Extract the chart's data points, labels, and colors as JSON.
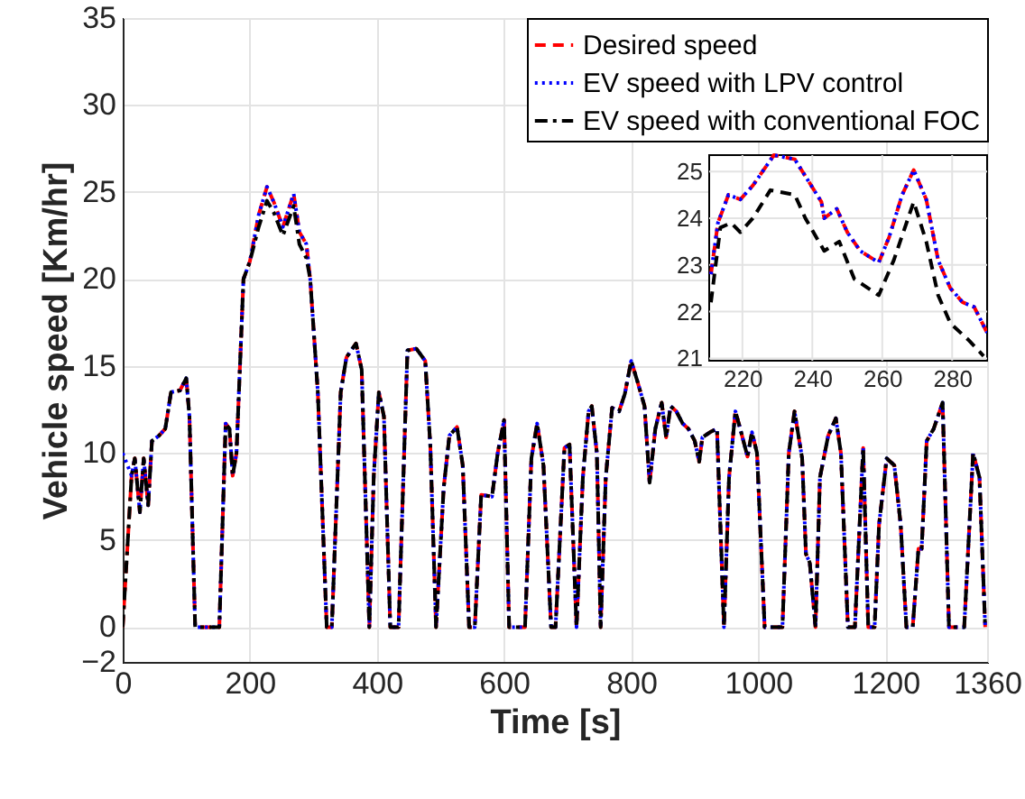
{
  "chart_data": [
    {
      "type": "line",
      "xlabel": "Time [s]",
      "ylabel": "Vehicle speed [Km/hr]",
      "xlim": [
        0,
        1360
      ],
      "ylim": [
        -2,
        35
      ],
      "xticks": [
        0,
        200,
        400,
        600,
        800,
        1000,
        1200,
        1360
      ],
      "yticks": [
        -2,
        0,
        5,
        10,
        15,
        20,
        25,
        30,
        35
      ],
      "grid": true,
      "legend": "top right",
      "x": [
        0,
        14,
        19,
        27,
        33,
        40,
        46,
        57,
        67,
        76,
        90,
        100,
        105,
        114,
        152,
        162,
        168,
        173,
        179,
        190,
        200,
        214,
        227,
        238,
        252,
        269,
        278,
        289,
        295,
        307,
        321,
        329,
        343,
        352,
        367,
        376,
        388,
        395,
        403,
        411,
        421,
        434,
        448,
        462,
        476,
        484,
        493,
        505,
        514,
        526,
        535,
        545,
        554,
        564,
        581,
        590,
        600,
        608,
        633,
        643,
        652,
        662,
        674,
        681,
        695,
        703,
        714,
        724,
        733,
        738,
        746,
        752,
        760,
        770,
        781,
        790,
        800,
        810,
        821,
        829,
        838,
        848,
        855,
        862,
        871,
        881,
        890,
        900,
        907,
        912,
        924,
        935,
        946,
        954,
        964,
        973,
        983,
        990,
        998,
        1010,
        1038,
        1048,
        1057,
        1069,
        1075,
        1081,
        1090,
        1097,
        1110,
        1122,
        1130,
        1141,
        1152,
        1165,
        1173,
        1183,
        1190,
        1202,
        1214,
        1224,
        1233,
        1243,
        1252,
        1257,
        1265,
        1276,
        1290,
        1300,
        1324,
        1338,
        1348,
        1357
      ],
      "series": [
        {
          "name": "Desired speed",
          "color": "#ff0000",
          "line_style": "dashed",
          "values": [
            0,
            8.7,
            9.7,
            6.6,
            9.7,
            7,
            10.7,
            11,
            11.4,
            13.5,
            13.6,
            14.3,
            12.1,
            0,
            0,
            11.7,
            11.4,
            8.7,
            10,
            20,
            21,
            23.7,
            25.3,
            24.4,
            23,
            24.9,
            22.7,
            22,
            20,
            13.5,
            0,
            0,
            13.5,
            15.5,
            16.3,
            14.8,
            0,
            8.7,
            13.5,
            12.1,
            0,
            0,
            15.9,
            16,
            15.3,
            10.4,
            0,
            8,
            11,
            11.5,
            9.3,
            0,
            0,
            7.6,
            7.5,
            10,
            11.9,
            0,
            0,
            9.7,
            11.7,
            9.3,
            0,
            0,
            10.3,
            10.5,
            0,
            8.6,
            12.4,
            12.7,
            10,
            0,
            8.6,
            12.6,
            12.4,
            13.4,
            15.3,
            14.1,
            12.7,
            8.3,
            11.4,
            12.9,
            10.9,
            12.7,
            12.4,
            11.7,
            11.4,
            10.7,
            9.5,
            10.9,
            11.2,
            11.4,
            0,
            8.6,
            12.4,
            11.2,
            9.8,
            11.2,
            10,
            0,
            0,
            10,
            12.4,
            9.7,
            4.2,
            3.7,
            0,
            8.6,
            11,
            12,
            10,
            0,
            0,
            10.3,
            0,
            0,
            5.9,
            9.7,
            9.3,
            5.9,
            0,
            0,
            4.5,
            4.5,
            10.7,
            11.4,
            12.9,
            0,
            0,
            10,
            8.6,
            0
          ]
        },
        {
          "name": "EV speed with LPV control",
          "color": "#0000ff",
          "line_style": "dotted",
          "values": [
            10,
            8.7,
            9.7,
            6.6,
            9.7,
            7,
            10.7,
            11,
            11.4,
            13.5,
            13.6,
            14.3,
            12.1,
            0,
            0,
            11.7,
            11.4,
            8.7,
            10,
            20,
            21,
            23.7,
            25.3,
            24.4,
            23,
            24.9,
            22.7,
            22,
            20,
            13.5,
            0,
            0,
            13.5,
            15.5,
            16.3,
            14.8,
            0,
            8.7,
            13.5,
            12.1,
            0,
            0,
            15.9,
            16,
            15.3,
            10.4,
            0,
            8,
            11,
            11.5,
            9.3,
            0,
            0,
            7.6,
            7.5,
            10,
            11.9,
            0,
            0,
            9.7,
            11.7,
            9.3,
            0,
            0,
            10.3,
            10.5,
            0,
            8.6,
            12.4,
            12.7,
            10,
            0,
            8.6,
            12.6,
            12.4,
            13.4,
            15.3,
            14.1,
            12.7,
            8.3,
            11.4,
            12.9,
            10.9,
            12.7,
            12.4,
            11.7,
            11.4,
            10.7,
            9.5,
            10.9,
            11.2,
            11.4,
            0,
            8.6,
            12.4,
            11.2,
            9.8,
            11.2,
            10,
            0,
            0,
            10,
            12.4,
            9.7,
            4.2,
            3.7,
            0,
            8.6,
            11,
            12,
            10,
            0,
            0,
            10.3,
            0,
            0,
            5.9,
            9.7,
            9.3,
            5.9,
            0,
            0,
            4.5,
            4.5,
            10.7,
            11.4,
            12.9,
            0,
            0,
            10,
            8.6,
            0
          ]
        },
        {
          "name": "EV speed with conventional FOC",
          "color": "#000000",
          "line_style": "dashdot",
          "values": [
            0,
            8.7,
            9.7,
            6.6,
            9.7,
            7,
            10.7,
            11,
            11.4,
            13.5,
            13.6,
            14.3,
            12.1,
            0,
            0,
            11.7,
            11.4,
            8.7,
            10,
            20,
            21,
            23,
            24.5,
            23.8,
            22.5,
            24.2,
            22,
            21.2,
            20,
            13.5,
            0,
            0,
            13.5,
            15.5,
            16.3,
            14.8,
            0,
            8.7,
            13.5,
            12.1,
            0,
            0,
            15.9,
            16,
            15.3,
            10.4,
            0,
            8,
            11,
            11.5,
            9.3,
            0,
            0,
            7.6,
            7.5,
            10,
            11.9,
            0,
            0,
            9.7,
            11.7,
            9.3,
            0,
            0,
            10.3,
            10.5,
            0,
            8.6,
            12.4,
            12.7,
            10,
            0,
            8.6,
            12.6,
            12.4,
            13.4,
            15.3,
            14.1,
            12.7,
            8.3,
            11.4,
            12.9,
            10.9,
            12.7,
            12.4,
            11.7,
            11.4,
            10.7,
            9.5,
            10.9,
            11.2,
            11.4,
            0,
            8.6,
            12.4,
            11.2,
            9.8,
            11.2,
            10,
            0,
            0,
            10,
            12.4,
            9.7,
            4.2,
            3.7,
            0,
            8.6,
            11,
            12,
            10,
            0,
            0,
            10.3,
            0,
            0,
            5.9,
            9.7,
            9.3,
            5.9,
            0,
            0,
            4.5,
            4.5,
            10.7,
            11.4,
            12.9,
            0,
            0,
            10,
            8.6,
            0
          ]
        }
      ]
    },
    {
      "type": "line",
      "xlim": [
        210.5,
        290
      ],
      "ylim": [
        20.95,
        25.35
      ],
      "xticks": [
        220,
        240,
        260,
        280
      ],
      "yticks": [
        21,
        22,
        23,
        24,
        25
      ],
      "grid": true,
      "series": [
        {
          "color": "#ff0000",
          "line_style": "dashed",
          "x": [
            211,
            213,
            216,
            219.4,
            223,
            229,
            235,
            238,
            242.6,
            243.4,
            247,
            250,
            253.7,
            259,
            262,
            265.7,
            269,
            272.6,
            276,
            279.5,
            283,
            286.3,
            290
          ],
          "values": [
            22.8,
            23.9,
            24.5,
            24.4,
            24.7,
            25.35,
            25.26,
            24.9,
            24.35,
            24,
            24.2,
            23.7,
            23.3,
            23.05,
            23.6,
            24.5,
            25.03,
            24.4,
            23.1,
            22.5,
            22.2,
            22.1,
            21.55
          ]
        },
        {
          "color": "#0000ff",
          "line_style": "dotted",
          "x": [
            211,
            213,
            216,
            219.4,
            223,
            229,
            235,
            238,
            242.6,
            243.4,
            247,
            250,
            253.7,
            259,
            262,
            265.7,
            269,
            272.6,
            276,
            279.5,
            283,
            286.3,
            290
          ],
          "values": [
            22.8,
            23.9,
            24.5,
            24.4,
            24.7,
            25.35,
            25.26,
            24.9,
            24.35,
            24,
            24.2,
            23.7,
            23.3,
            23.05,
            23.6,
            24.5,
            25.03,
            24.4,
            23.1,
            22.5,
            22.2,
            22.1,
            21.55
          ]
        },
        {
          "color": "#000000",
          "line_style": "dashed",
          "x": [
            211,
            213.7,
            216.8,
            219.4,
            223,
            228,
            235,
            238,
            243.4,
            247.7,
            252,
            259,
            263.3,
            269,
            272.6,
            276,
            279.5,
            284.6,
            289
          ],
          "values": [
            22.2,
            23.8,
            23.9,
            23.7,
            24,
            24.6,
            24.5,
            24,
            23.3,
            23.5,
            22.7,
            22.35,
            23.1,
            24.35,
            23.5,
            22.35,
            21.75,
            21.4,
            21.05
          ]
        }
      ]
    }
  ]
}
